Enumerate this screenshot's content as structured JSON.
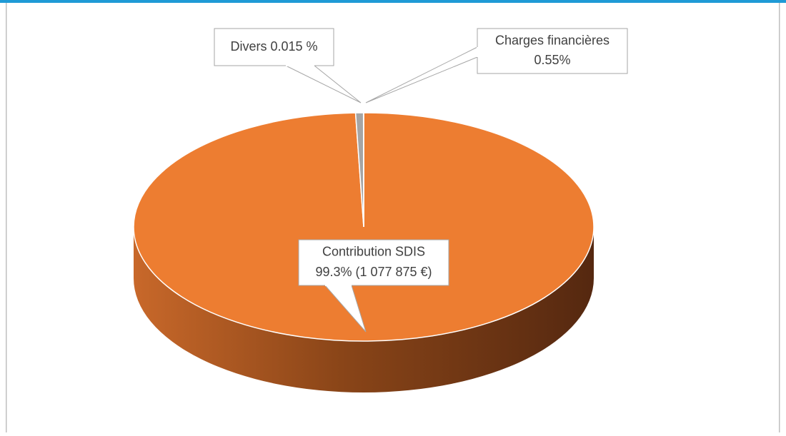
{
  "chart_data": {
    "type": "pie3d",
    "categories": [
      "Contribution SDIS",
      "Charges financières",
      "Divers"
    ],
    "values": [
      99.3,
      0.55,
      0.015
    ],
    "value_labels": [
      "99.3% (1 077 875 €)",
      "0.55%",
      "0.015 %"
    ],
    "colors": [
      "#ed7d31",
      "#a5a5a5",
      "#5b7fbf"
    ]
  }
}
